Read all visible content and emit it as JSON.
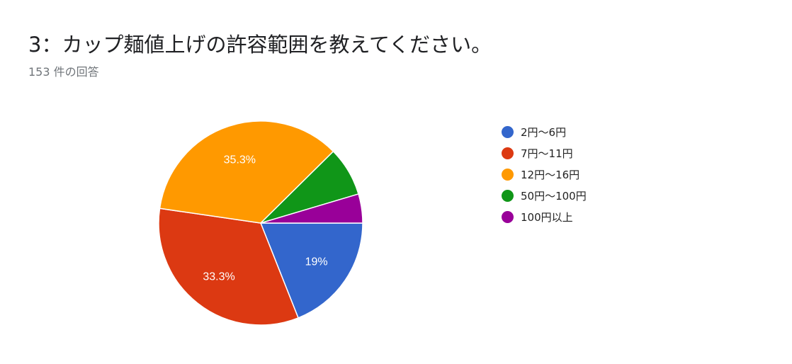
{
  "header": {
    "title": "3：カップ麺値上げの許容範囲を教えてください。",
    "response_count": "153 件の回答"
  },
  "chart_data": {
    "type": "pie",
    "categories": [
      "2円〜6円",
      "7円〜11円",
      "12円〜16円",
      "50円〜100円",
      "100円以上"
    ],
    "values": [
      19,
      33.3,
      35.3,
      7.8,
      4.6
    ],
    "value_labels": [
      "19%",
      "33.3%",
      "35.3%",
      "",
      ""
    ],
    "colors": [
      "#3366cc",
      "#dc3912",
      "#ff9900",
      "#109618",
      "#990099"
    ],
    "legend_position": "right"
  }
}
